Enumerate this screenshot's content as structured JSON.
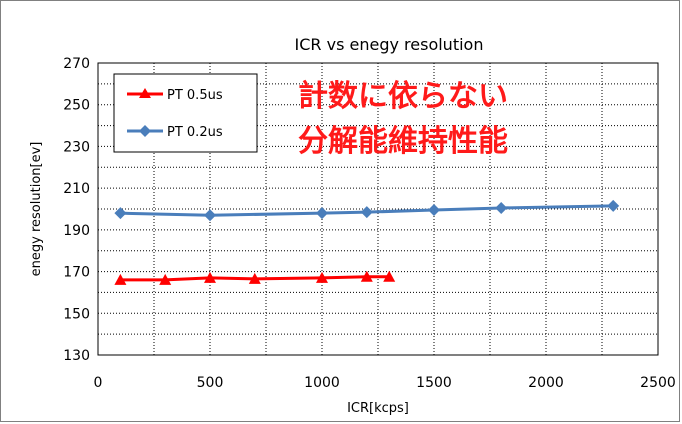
{
  "chart_data": {
    "type": "line",
    "title": "ICR vs enegy resolution",
    "xlabel": "ICR[kcps]",
    "ylabel": "enegy resolution[ev]",
    "xlim": [
      0,
      2500
    ],
    "ylim": [
      130,
      270
    ],
    "xticks": [
      0,
      500,
      1000,
      1500,
      2000,
      2500
    ],
    "yticks": [
      130,
      150,
      170,
      190,
      210,
      230,
      250,
      270
    ],
    "grid": true,
    "legend_position": "top-left",
    "annotations": [
      "計数に依らない",
      "分解能維持性能"
    ],
    "series": [
      {
        "name": "PT 0.5us",
        "color": "#ff0000",
        "marker": "triangle",
        "x": [
          100,
          300,
          500,
          700,
          1000,
          1200,
          1300
        ],
        "y": [
          166,
          166,
          167,
          166.5,
          167,
          167.5,
          167.5
        ]
      },
      {
        "name": "PT 0.2us",
        "color": "#4a7ebb",
        "marker": "diamond",
        "x": [
          100,
          500,
          1000,
          1200,
          1500,
          1800,
          2300
        ],
        "y": [
          198,
          197,
          198,
          198.5,
          199.5,
          200.5,
          201.5
        ]
      }
    ]
  }
}
